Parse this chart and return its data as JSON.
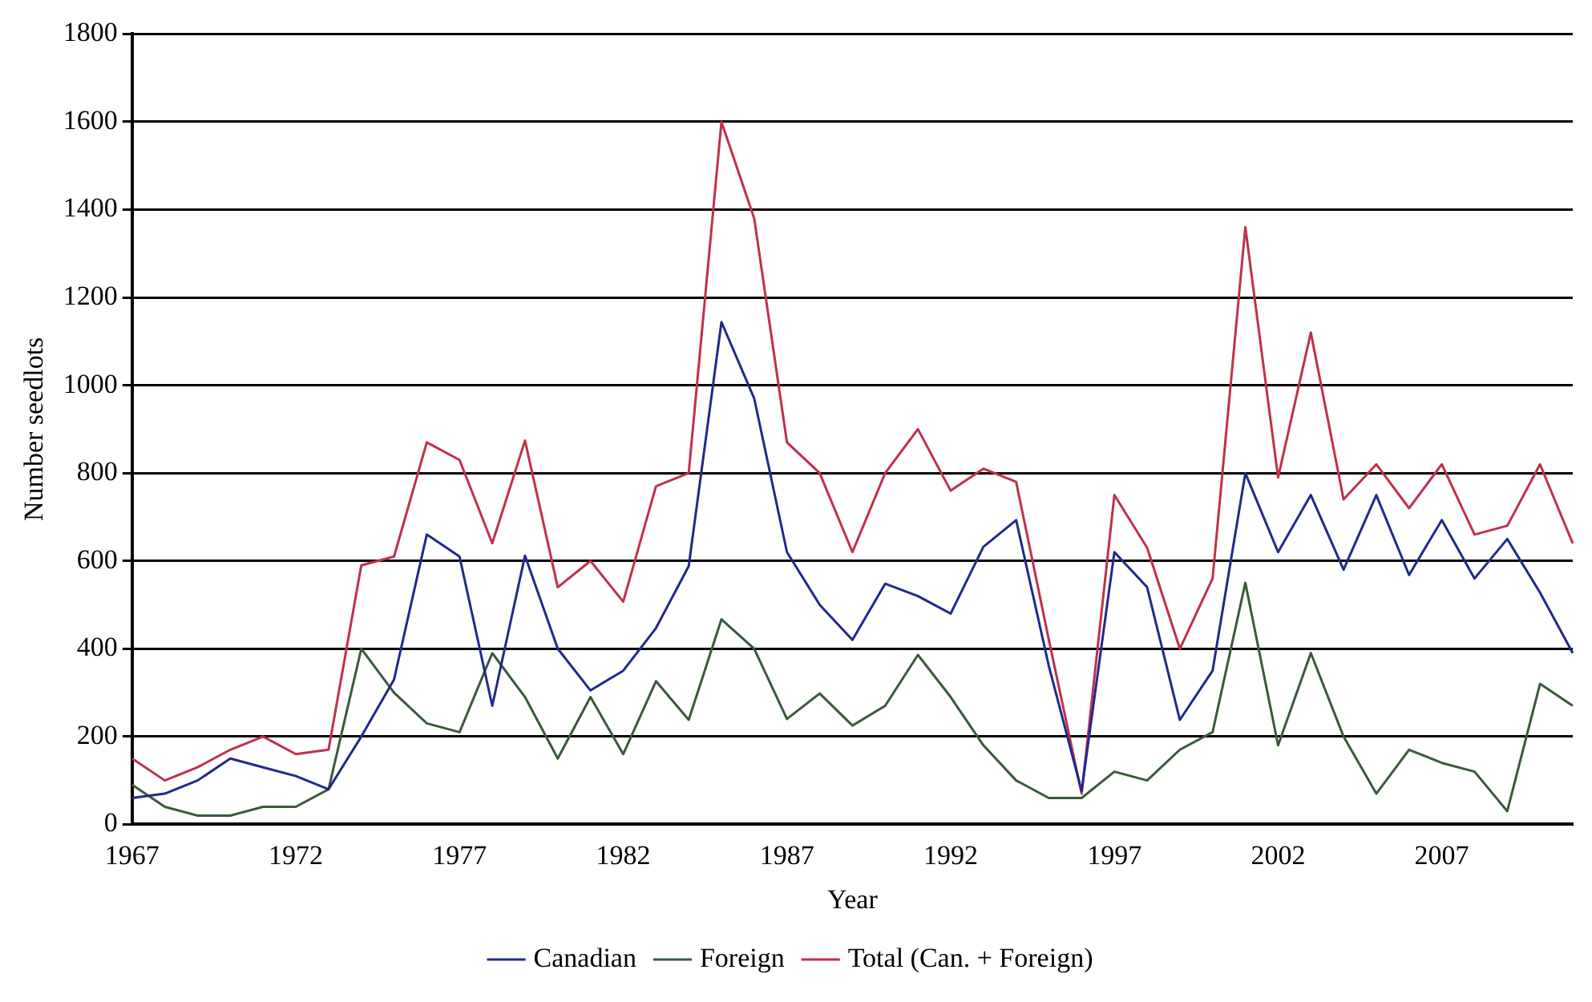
{
  "chart_data": {
    "type": "line",
    "xlabel": "Year",
    "ylabel": "Number seedlots",
    "categories": [
      "1967",
      null,
      null,
      null,
      null,
      "1972",
      null,
      null,
      null,
      null,
      "1977",
      null,
      null,
      null,
      null,
      "1982",
      null,
      null,
      null,
      null,
      "1987",
      null,
      null,
      null,
      null,
      "1992",
      null,
      null,
      null,
      null,
      "1997",
      null,
      null,
      null,
      null,
      "2002",
      null,
      null,
      null,
      null,
      "2007",
      null,
      null,
      null,
      null
    ],
    "series": [
      {
        "name": "Canadian",
        "color": "#1f2a8c",
        "values": [
          60,
          70,
          100,
          150,
          130,
          110,
          80,
          200,
          330,
          660,
          610,
          270,
          612,
          400,
          305,
          350,
          447,
          588,
          1144,
          970,
          620,
          500,
          420,
          548,
          520,
          480,
          632,
          693,
          360,
          76,
          620,
          540,
          238,
          350,
          800,
          620,
          750,
          580,
          750,
          568,
          693,
          560,
          650,
          528,
          390
        ]
      },
      {
        "name": "Foreign",
        "color": "#3a5a3a",
        "values": [
          90,
          40,
          20,
          20,
          40,
          40,
          80,
          400,
          300,
          230,
          210,
          390,
          290,
          150,
          290,
          160,
          326,
          238,
          467,
          400,
          240,
          298,
          225,
          270,
          386,
          290,
          180,
          100,
          60,
          60,
          120,
          100,
          170,
          210,
          550,
          180,
          390,
          200,
          70,
          170,
          140,
          120,
          30,
          320,
          270
        ]
      },
      {
        "name": "Total (Can. + Foreign)",
        "color": "#c0304a",
        "values": [
          150,
          100,
          130,
          170,
          200,
          160,
          170,
          590,
          610,
          870,
          830,
          640,
          874,
          540,
          600,
          507,
          770,
          800,
          1600,
          1380,
          870,
          800,
          620,
          800,
          900,
          760,
          810,
          780,
          420,
          70,
          750,
          630,
          400,
          560,
          1360,
          790,
          1120,
          740,
          820,
          720,
          820,
          660,
          680,
          820,
          640
        ]
      }
    ],
    "ylim": [
      0,
      1800
    ],
    "yticks": [
      0,
      200,
      400,
      600,
      800,
      1000,
      1200,
      1400,
      1600,
      1800
    ],
    "grid": "y",
    "legend": "bottom",
    "marker": "none",
    "line_style": "solid"
  }
}
